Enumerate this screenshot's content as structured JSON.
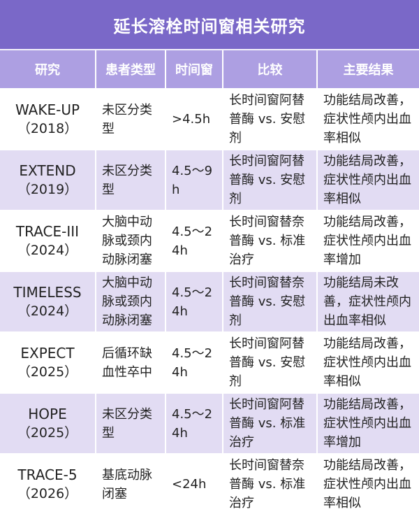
{
  "title": "延长溶栓时间窗相关研究",
  "headers": [
    "研究",
    "患者类型",
    "时间窗",
    "比较",
    "主要结果"
  ],
  "rows": [
    {
      "study": "WAKE-UP",
      "year": "（2018）",
      "patient": "未区分类型",
      "window": ">4.5h",
      "comparison": "长时间窗阿替普酶 vs. 安慰剂",
      "result": "功能结局改善，症状性颅内出血率相似"
    },
    {
      "study": "EXTEND",
      "year": "（2019）",
      "patient": "未区分类型",
      "window": "4.5～9h",
      "comparison": "长时间窗阿替普酶 vs. 安慰剂",
      "result": "功能结局改善，症状性颅内出血率相似"
    },
    {
      "study": "TRACE-III",
      "year": "（2024）",
      "patient": "大脑中动脉或颈内动脉闭塞",
      "window": "4.5～24h",
      "comparison": "长时间窗替奈普酶 vs. 标准治疗",
      "result": "功能结局改善，症状性颅内出血率增加"
    },
    {
      "study": "TIMELESS",
      "year": "（2024）",
      "patient": "大脑中动脉或颈内动脉闭塞",
      "window": "4.5～24h",
      "comparison": "长时间窗替奈普酶 vs. 安慰剂",
      "result": "功能结局未改善，症状性颅内出血率相似"
    },
    {
      "study": "EXPECT",
      "year": "（2025）",
      "patient": "后循环缺血性卒中",
      "window": "4.5～24h",
      "comparison": "长时间窗阿替普酶 vs. 安慰剂",
      "result": "功能结局改善，症状性颅内出血率相似"
    },
    {
      "study": "HOPE",
      "year": "（2025）",
      "patient": "未区分类型",
      "window": "4.5～24h",
      "comparison": "长时间窗阿替普酶 vs. 标准治疗",
      "result": "功能结局改善，症状性颅内出血率增加"
    },
    {
      "study": "TRACE-5",
      "year": "（2026）",
      "patient": "基底动脉闭塞",
      "window": "<24h",
      "comparison": "长时间窗替奈普酶 vs. 标准治疗",
      "result": "功能结局改善，症状性颅内出血率相似"
    }
  ],
  "colors": {
    "title_bg": "#7a68c8",
    "header_bg": "#ad9fe2",
    "row_alt_bg": "#e2dcf3",
    "row_bg": "#ffffff"
  }
}
